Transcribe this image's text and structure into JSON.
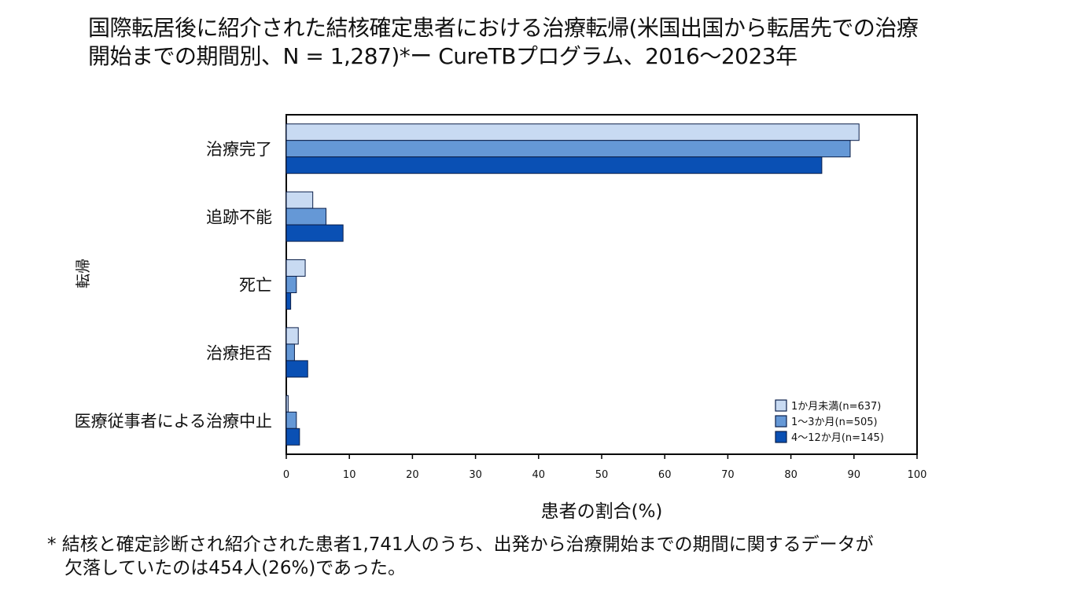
{
  "title_lines": [
    "国際転居後に紹介された結核確定患者における治療転帰(米国出国から転居先での治療",
    "開始までの期間別、N = 1,287)*ー CureTBプログラム、2016～2023年"
  ],
  "footnote_lines": [
    "* 結核と確定診断され紹介された患者1,741人のうち、出発から治療開始までの期間に関するデータが",
    "欠落していたのは454人(26%)であった。"
  ],
  "colors": {
    "series": [
      "#c8daf2",
      "#6598d6",
      "#0a50b4"
    ],
    "stroke": "#0b1f4a",
    "axis": "#000000"
  },
  "chart_data": {
    "type": "bar",
    "orientation": "horizontal",
    "categories": [
      "治療完了",
      "追跡不能",
      "死亡",
      "治療拒否",
      "医療従事者による治療中止"
    ],
    "series": [
      {
        "name": "1か月未満(n=637)",
        "values": [
          90.8,
          4.2,
          3.0,
          1.9,
          0.3
        ]
      },
      {
        "name": "1～3か月(n=505)",
        "values": [
          89.4,
          6.3,
          1.6,
          1.3,
          1.6
        ]
      },
      {
        "name": "4～12か月(n=145)",
        "values": [
          84.9,
          9.0,
          0.7,
          3.4,
          2.1
        ]
      }
    ],
    "xlabel": "患者の割合(%)",
    "ylabel": "転帰",
    "xlim": [
      0,
      100
    ],
    "xticks": [
      0,
      10,
      20,
      30,
      40,
      50,
      60,
      70,
      80,
      90,
      100
    ],
    "grid": false,
    "legend": "bottom-right"
  }
}
